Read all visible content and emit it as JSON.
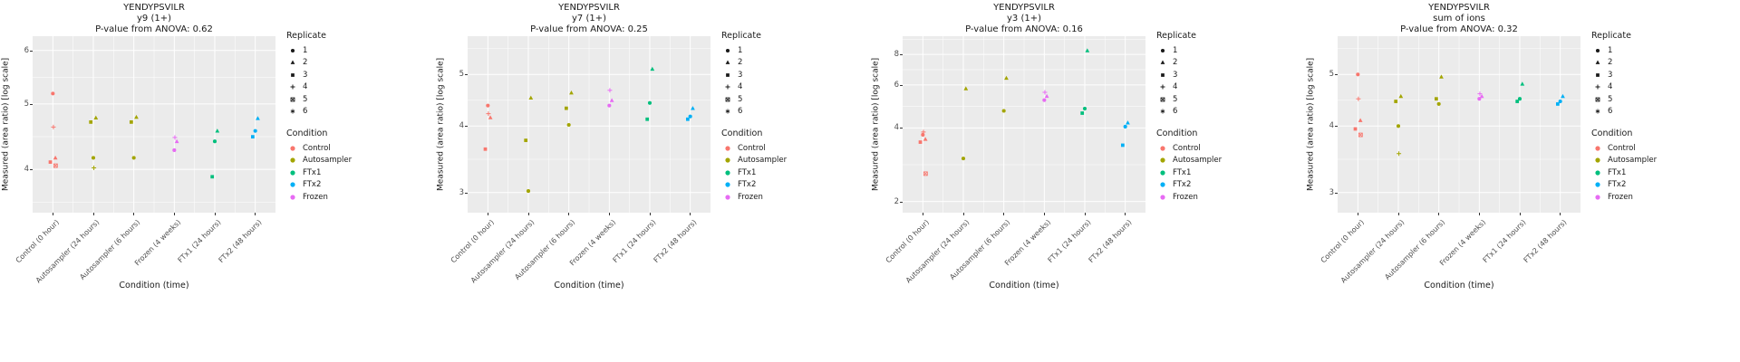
{
  "page": {
    "background": "#FFFFFF"
  },
  "xlabel": "Condition (time)",
  "ylabel": "Measured (area ratio) [log scale]",
  "x_categories": [
    "Control (0 hour)",
    "Autosampler (24 hours)",
    "Autosampler (6 hours)",
    "Frozen (4 weeks)",
    "FTx1 (24 hours)",
    "FTx2 (48 hours)"
  ],
  "category_condition": [
    "Control",
    "Autosampler",
    "Autosampler",
    "Frozen",
    "FTx1",
    "FTx2"
  ],
  "colors": {
    "panel_bg": "#EBEBEB",
    "grid": "#FFFFFF",
    "tick_text": "#4D4D4D",
    "text": "#1A1A1A",
    "replicate_glyph": "#1A1A1A"
  },
  "legend": {
    "replicate_title": "Replicate",
    "replicates": [
      {
        "label": "1",
        "shape": "circle"
      },
      {
        "label": "2",
        "shape": "triangle"
      },
      {
        "label": "3",
        "shape": "square"
      },
      {
        "label": "4",
        "shape": "plus"
      },
      {
        "label": "5",
        "shape": "boxed-x"
      },
      {
        "label": "6",
        "shape": "asterisk"
      }
    ],
    "condition_title": "Condition",
    "conditions": [
      {
        "label": "Control",
        "color": "#F8766D"
      },
      {
        "label": "Autosampler",
        "color": "#A3A500"
      },
      {
        "label": "FTx1",
        "color": "#00BF7D"
      },
      {
        "label": "FTx2",
        "color": "#00B0F6"
      },
      {
        "label": "Frozen",
        "color": "#E76BF3"
      }
    ]
  },
  "chart_data": [
    {
      "type": "scatter",
      "title": "YENDYPSVILR",
      "subtitle": "y9 (1+)",
      "stat_line": "P-value from ANOVA: 0.62",
      "xlabel": "Condition (time)",
      "ylabel": "Measured (area ratio) [log scale]",
      "yscale": "log",
      "yticks": [
        4,
        5,
        6
      ],
      "ylim": [
        3.45,
        6.3
      ],
      "categories": [
        "Control (0 hour)",
        "Autosampler (24 hours)",
        "Autosampler (6 hours)",
        "Frozen (4 weeks)",
        "FTx1 (24 hours)",
        "FTx2 (48 hours)"
      ],
      "points": [
        {
          "cat": 0,
          "rep": 1,
          "y": 5.18
        },
        {
          "cat": 0,
          "rep": 4,
          "y": 4.62
        },
        {
          "cat": 0,
          "rep": 2,
          "y": 4.16
        },
        {
          "cat": 0,
          "rep": 3,
          "y": 4.1
        },
        {
          "cat": 0,
          "rep": 5,
          "y": 4.05
        },
        {
          "cat": 1,
          "rep": 2,
          "y": 4.77
        },
        {
          "cat": 1,
          "rep": 3,
          "y": 4.7
        },
        {
          "cat": 1,
          "rep": 1,
          "y": 4.16
        },
        {
          "cat": 1,
          "rep": 4,
          "y": 4.02
        },
        {
          "cat": 2,
          "rep": 2,
          "y": 4.78
        },
        {
          "cat": 2,
          "rep": 3,
          "y": 4.7
        },
        {
          "cat": 2,
          "rep": 1,
          "y": 4.16
        },
        {
          "cat": 3,
          "rep": 4,
          "y": 4.46
        },
        {
          "cat": 3,
          "rep": 2,
          "y": 4.4
        },
        {
          "cat": 3,
          "rep": 1,
          "y": 4.27
        },
        {
          "cat": 4,
          "rep": 2,
          "y": 4.56
        },
        {
          "cat": 4,
          "rep": 1,
          "y": 4.4
        },
        {
          "cat": 4,
          "rep": 3,
          "y": 3.9
        },
        {
          "cat": 5,
          "rep": 2,
          "y": 4.76
        },
        {
          "cat": 5,
          "rep": 1,
          "y": 4.56
        },
        {
          "cat": 5,
          "rep": 3,
          "y": 4.47
        }
      ]
    },
    {
      "type": "scatter",
      "title": "YENDYPSVILR",
      "subtitle": "y7 (1+)",
      "stat_line": "P-value from ANOVA: 0.25",
      "xlabel": "Condition (time)",
      "ylabel": "Measured (area ratio) [log scale]",
      "yscale": "log",
      "yticks": [
        3,
        4,
        5
      ],
      "ylim": [
        2.75,
        5.9
      ],
      "categories": [
        "Control (0 hour)",
        "Autosampler (24 hours)",
        "Autosampler (6 hours)",
        "Frozen (4 weeks)",
        "FTx1 (24 hours)",
        "FTx2 (48 hours)"
      ],
      "points": [
        {
          "cat": 0,
          "rep": 1,
          "y": 4.37
        },
        {
          "cat": 0,
          "rep": 4,
          "y": 4.22
        },
        {
          "cat": 0,
          "rep": 2,
          "y": 4.15
        },
        {
          "cat": 0,
          "rep": 3,
          "y": 3.62
        },
        {
          "cat": 1,
          "rep": 2,
          "y": 4.52
        },
        {
          "cat": 1,
          "rep": 3,
          "y": 3.76
        },
        {
          "cat": 1,
          "rep": 1,
          "y": 3.02
        },
        {
          "cat": 2,
          "rep": 2,
          "y": 4.62
        },
        {
          "cat": 2,
          "rep": 3,
          "y": 4.32
        },
        {
          "cat": 2,
          "rep": 1,
          "y": 4.02
        },
        {
          "cat": 3,
          "rep": 4,
          "y": 4.67
        },
        {
          "cat": 3,
          "rep": 2,
          "y": 4.47
        },
        {
          "cat": 3,
          "rep": 1,
          "y": 4.37
        },
        {
          "cat": 4,
          "rep": 2,
          "y": 5.12
        },
        {
          "cat": 4,
          "rep": 1,
          "y": 4.42
        },
        {
          "cat": 4,
          "rep": 3,
          "y": 4.12
        },
        {
          "cat": 5,
          "rep": 2,
          "y": 4.32
        },
        {
          "cat": 5,
          "rep": 1,
          "y": 4.17
        },
        {
          "cat": 5,
          "rep": 3,
          "y": 4.12
        }
      ]
    },
    {
      "type": "scatter",
      "title": "YENDYPSVILR",
      "subtitle": "y3 (1+)",
      "stat_line": "P-value from ANOVA: 0.16",
      "xlabel": "Condition (time)",
      "ylabel": "Measured (area ratio) [log scale]",
      "yscale": "log",
      "yticks": [
        2,
        4,
        6,
        8
      ],
      "ylim": [
        1.8,
        9.5
      ],
      "categories": [
        "Control (0 hour)",
        "Autosampler (24 hours)",
        "Autosampler (6 hours)",
        "Frozen (4 weeks)",
        "FTx1 (24 hours)",
        "FTx2 (48 hours)"
      ],
      "points": [
        {
          "cat": 0,
          "rep": 4,
          "y": 3.85
        },
        {
          "cat": 0,
          "rep": 1,
          "y": 3.75
        },
        {
          "cat": 0,
          "rep": 2,
          "y": 3.6
        },
        {
          "cat": 0,
          "rep": 3,
          "y": 3.5
        },
        {
          "cat": 0,
          "rep": 5,
          "y": 2.6
        },
        {
          "cat": 1,
          "rep": 2,
          "y": 5.8
        },
        {
          "cat": 1,
          "rep": 1,
          "y": 3.0
        },
        {
          "cat": 2,
          "rep": 2,
          "y": 6.4
        },
        {
          "cat": 2,
          "rep": 1,
          "y": 4.7
        },
        {
          "cat": 3,
          "rep": 4,
          "y": 5.6
        },
        {
          "cat": 3,
          "rep": 2,
          "y": 5.4
        },
        {
          "cat": 3,
          "rep": 1,
          "y": 5.2
        },
        {
          "cat": 4,
          "rep": 2,
          "y": 8.3
        },
        {
          "cat": 4,
          "rep": 1,
          "y": 4.8
        },
        {
          "cat": 4,
          "rep": 3,
          "y": 4.6
        },
        {
          "cat": 5,
          "rep": 2,
          "y": 4.2
        },
        {
          "cat": 5,
          "rep": 1,
          "y": 4.05
        },
        {
          "cat": 5,
          "rep": 3,
          "y": 3.4
        }
      ]
    },
    {
      "type": "scatter",
      "title": "YENDYPSVILR",
      "subtitle": "sum of ions",
      "stat_line": "P-value from ANOVA: 0.32",
      "xlabel": "Condition (time)",
      "ylabel": "Measured (area ratio) [log scale]",
      "yscale": "log",
      "yticks": [
        3,
        4,
        5
      ],
      "ylim": [
        2.75,
        5.9
      ],
      "categories": [
        "Control (0 hour)",
        "Autosampler (24 hours)",
        "Autosampler (6 hours)",
        "Frozen (4 weeks)",
        "FTx1 (24 hours)",
        "FTx2 (48 hours)"
      ],
      "points": [
        {
          "cat": 0,
          "rep": 1,
          "y": 5.0
        },
        {
          "cat": 0,
          "rep": 4,
          "y": 4.5
        },
        {
          "cat": 0,
          "rep": 2,
          "y": 4.1
        },
        {
          "cat": 0,
          "rep": 3,
          "y": 3.95
        },
        {
          "cat": 0,
          "rep": 5,
          "y": 3.85
        },
        {
          "cat": 1,
          "rep": 2,
          "y": 4.55
        },
        {
          "cat": 1,
          "rep": 3,
          "y": 4.45
        },
        {
          "cat": 1,
          "rep": 1,
          "y": 4.0
        },
        {
          "cat": 1,
          "rep": 4,
          "y": 3.55
        },
        {
          "cat": 2,
          "rep": 2,
          "y": 4.95
        },
        {
          "cat": 2,
          "rep": 3,
          "y": 4.5
        },
        {
          "cat": 2,
          "rep": 1,
          "y": 4.4
        },
        {
          "cat": 3,
          "rep": 4,
          "y": 4.6
        },
        {
          "cat": 3,
          "rep": 2,
          "y": 4.55
        },
        {
          "cat": 3,
          "rep": 1,
          "y": 4.5
        },
        {
          "cat": 4,
          "rep": 2,
          "y": 4.8
        },
        {
          "cat": 4,
          "rep": 1,
          "y": 4.5
        },
        {
          "cat": 4,
          "rep": 3,
          "y": 4.45
        },
        {
          "cat": 5,
          "rep": 2,
          "y": 4.55
        },
        {
          "cat": 5,
          "rep": 1,
          "y": 4.45
        },
        {
          "cat": 5,
          "rep": 3,
          "y": 4.4
        }
      ]
    }
  ]
}
